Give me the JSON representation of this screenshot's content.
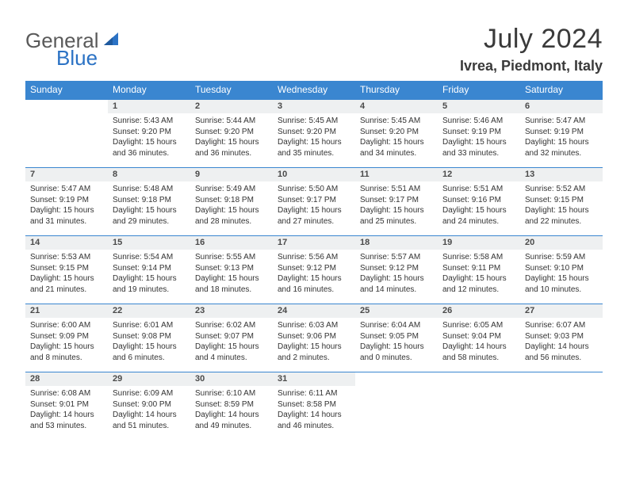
{
  "logo": {
    "w1": "General",
    "w2": "Blue"
  },
  "title": "July 2024",
  "location": "Ivrea, Piedmont, Italy",
  "colors": {
    "header_bg": "#3a86d0",
    "header_text": "#ffffff",
    "daynum_bg": "#eef0f1",
    "border": "#3a86d0",
    "body_text": "#333333",
    "logo_gray": "#5a5a5a",
    "logo_blue": "#2b72c4"
  },
  "dayHeaders": [
    "Sunday",
    "Monday",
    "Tuesday",
    "Wednesday",
    "Thursday",
    "Friday",
    "Saturday"
  ],
  "weeks": [
    [
      null,
      {
        "n": "1",
        "sr": "5:43 AM",
        "ss": "9:20 PM",
        "dl": "15 hours and 36 minutes."
      },
      {
        "n": "2",
        "sr": "5:44 AM",
        "ss": "9:20 PM",
        "dl": "15 hours and 36 minutes."
      },
      {
        "n": "3",
        "sr": "5:45 AM",
        "ss": "9:20 PM",
        "dl": "15 hours and 35 minutes."
      },
      {
        "n": "4",
        "sr": "5:45 AM",
        "ss": "9:20 PM",
        "dl": "15 hours and 34 minutes."
      },
      {
        "n": "5",
        "sr": "5:46 AM",
        "ss": "9:19 PM",
        "dl": "15 hours and 33 minutes."
      },
      {
        "n": "6",
        "sr": "5:47 AM",
        "ss": "9:19 PM",
        "dl": "15 hours and 32 minutes."
      }
    ],
    [
      {
        "n": "7",
        "sr": "5:47 AM",
        "ss": "9:19 PM",
        "dl": "15 hours and 31 minutes."
      },
      {
        "n": "8",
        "sr": "5:48 AM",
        "ss": "9:18 PM",
        "dl": "15 hours and 29 minutes."
      },
      {
        "n": "9",
        "sr": "5:49 AM",
        "ss": "9:18 PM",
        "dl": "15 hours and 28 minutes."
      },
      {
        "n": "10",
        "sr": "5:50 AM",
        "ss": "9:17 PM",
        "dl": "15 hours and 27 minutes."
      },
      {
        "n": "11",
        "sr": "5:51 AM",
        "ss": "9:17 PM",
        "dl": "15 hours and 25 minutes."
      },
      {
        "n": "12",
        "sr": "5:51 AM",
        "ss": "9:16 PM",
        "dl": "15 hours and 24 minutes."
      },
      {
        "n": "13",
        "sr": "5:52 AM",
        "ss": "9:15 PM",
        "dl": "15 hours and 22 minutes."
      }
    ],
    [
      {
        "n": "14",
        "sr": "5:53 AM",
        "ss": "9:15 PM",
        "dl": "15 hours and 21 minutes."
      },
      {
        "n": "15",
        "sr": "5:54 AM",
        "ss": "9:14 PM",
        "dl": "15 hours and 19 minutes."
      },
      {
        "n": "16",
        "sr": "5:55 AM",
        "ss": "9:13 PM",
        "dl": "15 hours and 18 minutes."
      },
      {
        "n": "17",
        "sr": "5:56 AM",
        "ss": "9:12 PM",
        "dl": "15 hours and 16 minutes."
      },
      {
        "n": "18",
        "sr": "5:57 AM",
        "ss": "9:12 PM",
        "dl": "15 hours and 14 minutes."
      },
      {
        "n": "19",
        "sr": "5:58 AM",
        "ss": "9:11 PM",
        "dl": "15 hours and 12 minutes."
      },
      {
        "n": "20",
        "sr": "5:59 AM",
        "ss": "9:10 PM",
        "dl": "15 hours and 10 minutes."
      }
    ],
    [
      {
        "n": "21",
        "sr": "6:00 AM",
        "ss": "9:09 PM",
        "dl": "15 hours and 8 minutes."
      },
      {
        "n": "22",
        "sr": "6:01 AM",
        "ss": "9:08 PM",
        "dl": "15 hours and 6 minutes."
      },
      {
        "n": "23",
        "sr": "6:02 AM",
        "ss": "9:07 PM",
        "dl": "15 hours and 4 minutes."
      },
      {
        "n": "24",
        "sr": "6:03 AM",
        "ss": "9:06 PM",
        "dl": "15 hours and 2 minutes."
      },
      {
        "n": "25",
        "sr": "6:04 AM",
        "ss": "9:05 PM",
        "dl": "15 hours and 0 minutes."
      },
      {
        "n": "26",
        "sr": "6:05 AM",
        "ss": "9:04 PM",
        "dl": "14 hours and 58 minutes."
      },
      {
        "n": "27",
        "sr": "6:07 AM",
        "ss": "9:03 PM",
        "dl": "14 hours and 56 minutes."
      }
    ],
    [
      {
        "n": "28",
        "sr": "6:08 AM",
        "ss": "9:01 PM",
        "dl": "14 hours and 53 minutes."
      },
      {
        "n": "29",
        "sr": "6:09 AM",
        "ss": "9:00 PM",
        "dl": "14 hours and 51 minutes."
      },
      {
        "n": "30",
        "sr": "6:10 AM",
        "ss": "8:59 PM",
        "dl": "14 hours and 49 minutes."
      },
      {
        "n": "31",
        "sr": "6:11 AM",
        "ss": "8:58 PM",
        "dl": "14 hours and 46 minutes."
      },
      null,
      null,
      null
    ]
  ],
  "labels": {
    "sunrise": "Sunrise: ",
    "sunset": "Sunset: ",
    "daylight": "Daylight: "
  }
}
